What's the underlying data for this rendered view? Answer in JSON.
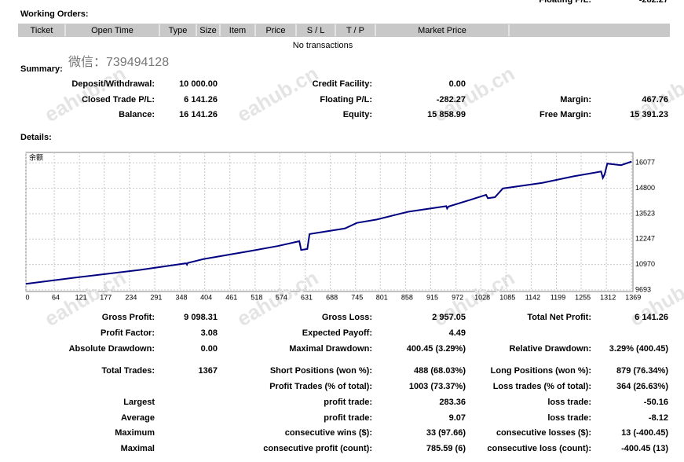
{
  "top_cut": [
    "Floating P/L:",
    "-282.27"
  ],
  "watermark": "eahub.cn",
  "wechat": "微信：739494128",
  "working_orders": {
    "title": "Working Orders:",
    "columns": [
      "Ticket",
      "Open Time",
      "Type",
      "Size",
      "Item",
      "Price",
      "S / L",
      "T / P",
      "Market Price"
    ],
    "empty": "No transactions"
  },
  "summary": {
    "title": "Summary:",
    "rows": [
      [
        "Deposit/Withdrawal:",
        "10 000.00",
        "Credit Facility:",
        "0.00",
        null,
        null
      ],
      [
        "Closed Trade P/L:",
        "6 141.26",
        "Floating P/L:",
        "-282.27",
        "Margin:",
        "467.76"
      ],
      [
        "Balance:",
        "16 141.26",
        "Equity:",
        "15 858.99",
        "Free Margin:",
        "15 391.23"
      ]
    ]
  },
  "details_title": "Details:",
  "chart_data": {
    "type": "line",
    "series": [
      {
        "name": "余额",
        "color": "#000080",
        "x": [
          0,
          107,
          258,
          362,
          364,
          366,
          401,
          508,
          570,
          618,
          622,
          636,
          641,
          721,
          748,
          793,
          864,
          950,
          952,
          955,
          1006,
          1040,
          1044,
          1060,
          1078,
          1167,
          1238,
          1300,
          1304,
          1308,
          1314,
          1345,
          1369
        ],
        "values": [
          10000,
          10300,
          10700,
          11030,
          10960,
          11050,
          11240,
          11650,
          11900,
          12140,
          11700,
          11750,
          12500,
          12780,
          13060,
          13230,
          13620,
          13900,
          13780,
          13880,
          14230,
          14470,
          14300,
          14350,
          14790,
          15070,
          15400,
          15640,
          15320,
          15500,
          16037,
          15960,
          16141
        ]
      }
    ],
    "xlim": [
      0,
      1372
    ],
    "xticks": [
      0,
      64,
      121,
      177,
      234,
      291,
      348,
      404,
      461,
      518,
      574,
      631,
      688,
      745,
      801,
      858,
      915,
      972,
      1028,
      1085,
      1142,
      1199,
      1255,
      1312,
      1369
    ],
    "ylim": [
      9613,
      16600
    ],
    "yticks": [
      9693,
      10970,
      12247,
      13523,
      14800,
      16077
    ],
    "grid": true
  },
  "stats": {
    "rows": [
      [
        "Gross Profit:",
        "9 098.31",
        "Gross Loss:",
        "2 957.05",
        "Total Net Profit:",
        "6 141.26"
      ],
      [
        "Profit Factor:",
        "3.08",
        "Expected Payoff:",
        "4.49",
        null,
        null
      ],
      [
        "Absolute Drawdown:",
        "0.00",
        "Maximal Drawdown:",
        "400.45 (3.29%)",
        "Relative Drawdown:",
        "3.29% (400.45)"
      ],
      [
        "Total Trades:",
        "1367",
        "Short Positions (won %):",
        "488 (68.03%)",
        "Long Positions (won %):",
        "879 (76.34%)"
      ],
      [
        null,
        null,
        "Profit Trades (% of total):",
        "1003 (73.37%)",
        "Loss trades (% of total):",
        "364 (26.63%)"
      ],
      [
        "Largest",
        null,
        "profit trade:",
        "283.36",
        "loss trade:",
        "-50.16"
      ],
      [
        "Average",
        null,
        "profit trade:",
        "9.07",
        "loss trade:",
        "-8.12"
      ],
      [
        "Maximum",
        null,
        "consecutive wins ($):",
        "33 (97.66)",
        "consecutive losses ($):",
        "13 (-400.45)"
      ],
      [
        "Maximal",
        null,
        "consecutive profit (count):",
        "785.59 (6)",
        "consecutive loss (count):",
        "-400.45 (13)"
      ]
    ]
  }
}
